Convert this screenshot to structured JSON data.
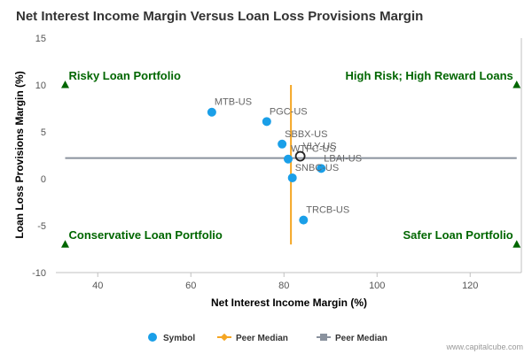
{
  "chart_data": {
    "type": "scatter",
    "title": "Net Interest Income Margin Versus Loan Loss Provisions Margin",
    "xlabel": "Net Interest Income Margin (%)",
    "ylabel": "Loan Loss Provisions Margin (%)",
    "xlim": [
      31,
      131
    ],
    "ylim": [
      -10,
      15
    ],
    "x_ticks": [
      "40",
      "60",
      "80",
      "100",
      "120"
    ],
    "x_tick_values": [
      40,
      60,
      80,
      100,
      120
    ],
    "y_ticks": [
      "15",
      "10",
      "5",
      "0",
      "-5",
      "-10"
    ],
    "y_tick_values": [
      15,
      10,
      5,
      0,
      -5,
      -10
    ],
    "grid": false,
    "series": [
      {
        "name": "Symbol",
        "color": "#1a9fe8",
        "points": [
          {
            "label": "MTB-US",
            "x": 64.5,
            "y": 7.1
          },
          {
            "label": "PGC-US",
            "x": 76.3,
            "y": 6.1
          },
          {
            "label": "SBBX-US",
            "x": 79.6,
            "y": 3.7
          },
          {
            "label": "WTFC-US",
            "x": 80.9,
            "y": 2.1
          },
          {
            "label": "VLY-US",
            "x": 83.5,
            "y": 2.4,
            "highlight": true
          },
          {
            "label": "LBAI-US",
            "x": 88.0,
            "y": 1.1
          },
          {
            "label": "SNBC-US",
            "x": 81.8,
            "y": 0.1
          },
          {
            "label": "TRCB-US",
            "x": 84.2,
            "y": -4.4
          }
        ]
      }
    ],
    "peer_median_vertical": {
      "name": "Peer Median",
      "x": 81.5,
      "y_range": [
        -7,
        10
      ],
      "color": "#f5a623"
    },
    "peer_median_horizontal": {
      "name": "Peer Median",
      "y": 2.2,
      "x_range": [
        33,
        130
      ],
      "color": "#8a929e"
    },
    "quadrants": [
      {
        "label": "Risky Loan Portfolio",
        "corner": "top-left",
        "marker_x": 33,
        "marker_y": 10
      },
      {
        "label": "High Risk; High Reward Loans",
        "corner": "top-right",
        "marker_x": 130,
        "marker_y": 10
      },
      {
        "label": "Conservative Loan Portfolio",
        "corner": "bottom-left",
        "marker_x": 33,
        "marker_y": -7
      },
      {
        "label": "Safer Loan Portfolio",
        "corner": "bottom-right",
        "marker_x": 130,
        "marker_y": -7
      }
    ],
    "legend": {
      "placement": "bottom-center",
      "items": [
        "Symbol",
        "Peer Median",
        "Peer Median"
      ]
    }
  },
  "credit": "www.capitalcube.com"
}
